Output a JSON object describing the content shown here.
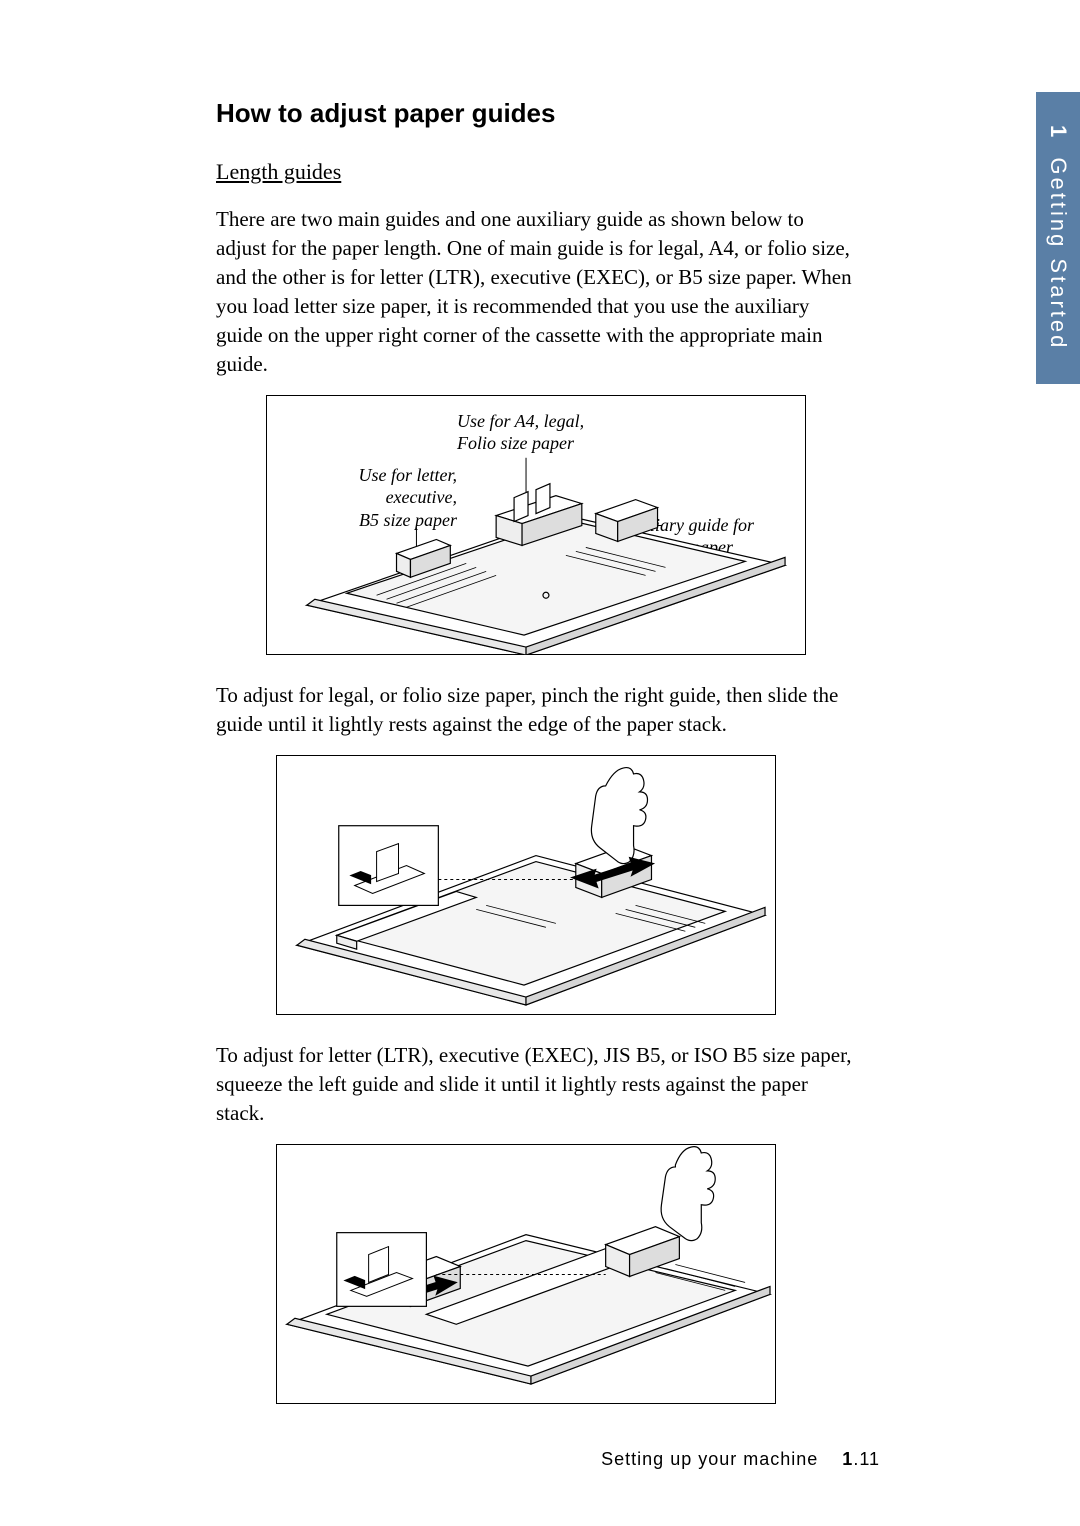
{
  "tab": {
    "chapter_num": "1",
    "chapter_title": "Getting Started",
    "bg": "#5a7fa6",
    "fg": "#ffffff"
  },
  "heading": "How to adjust paper guides",
  "subheading": "Length guides",
  "para1": "There are two main guides and one auxiliary guide as shown below to adjust for the paper length. One of main guide is for legal, A4, or folio size, and the other is for letter (LTR), executive (EXEC), or B5 size paper. When you load letter size paper, it is recommended that you use the auxiliary guide on the upper right corner of the cassette with the appropriate main guide.",
  "para2": "To adjust for legal, or folio size paper, pinch the right guide, then slide the guide until it lightly rests against the edge of the paper stack.",
  "para3": "To adjust for letter (LTR), executive (EXEC), JIS B5, or ISO B5 size paper, squeeze the left guide and slide it until it lightly rests against the paper stack.",
  "fig1": {
    "callout_top": "Use for A4, legal,\nFolio size paper",
    "callout_left": "Use for letter,\nexecutive,\nB5 size paper",
    "callout_right": "Auxiliary guide for\nletter size paper"
  },
  "footer": {
    "section": "Setting up your machine",
    "chapter": "1",
    "page": ".11"
  },
  "colors": {
    "stroke": "#000000",
    "fill": "#ffffff",
    "shade": "#e8e8e8"
  }
}
